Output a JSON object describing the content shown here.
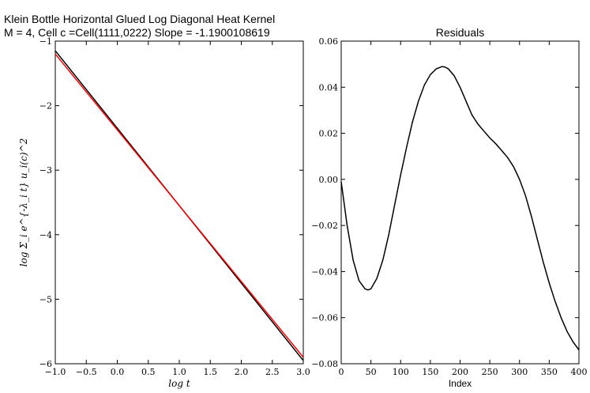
{
  "figure": {
    "title_line1": "Klein Bottle Horizontal Glued Log Diagonal Heat Kernel",
    "title_line2": "M = 4, Cell c =Cell(1111,0222) Slope = -1.1900108619"
  },
  "chart_data": [
    {
      "type": "line",
      "title": "",
      "xlabel": "log t",
      "ylabel": "log Σ_i e^{-λ_i t} u_i(c)^2",
      "xlim": [
        -1.0,
        3.0
      ],
      "ylim": [
        -6,
        -1
      ],
      "xticks": [
        "−1.0",
        "−0.5",
        "0.0",
        "0.5",
        "1.0",
        "1.5",
        "2.0",
        "2.5",
        "3.0"
      ],
      "yticks": [
        "−6",
        "−5",
        "−4",
        "−3",
        "−2",
        "−1"
      ],
      "grid": false,
      "series": [
        {
          "color": "#000000",
          "x": [
            -1.0,
            3.0
          ],
          "y": [
            -1.15,
            -5.95
          ]
        },
        {
          "color": "#ff0000",
          "x": [
            -1.0,
            3.0
          ],
          "y": [
            -1.2,
            -5.9
          ]
        }
      ]
    },
    {
      "type": "line",
      "title": "Residuals",
      "xlabel": "Index",
      "ylabel": "",
      "xlim": [
        0,
        400
      ],
      "ylim": [
        -0.08,
        0.06
      ],
      "xticks": [
        "0",
        "50",
        "100",
        "150",
        "200",
        "250",
        "300",
        "350",
        "400"
      ],
      "yticks": [
        "−0.08",
        "−0.06",
        "−0.04",
        "−0.02",
        "0.00",
        "0.02",
        "0.04",
        "0.06"
      ],
      "grid": false,
      "series": [
        {
          "color": "#000000",
          "x": [
            0,
            10,
            20,
            30,
            40,
            45,
            50,
            60,
            70,
            80,
            90,
            100,
            110,
            120,
            130,
            140,
            150,
            160,
            170,
            175,
            180,
            190,
            200,
            210,
            220,
            230,
            240,
            250,
            260,
            270,
            280,
            290,
            300,
            310,
            320,
            330,
            340,
            350,
            360,
            370,
            380,
            390,
            400
          ],
          "y": [
            -0.001,
            -0.02,
            -0.035,
            -0.044,
            -0.0475,
            -0.048,
            -0.0475,
            -0.043,
            -0.035,
            -0.024,
            -0.011,
            0.002,
            0.014,
            0.025,
            0.034,
            0.041,
            0.0455,
            0.048,
            0.049,
            0.0487,
            0.048,
            0.045,
            0.04,
            0.034,
            0.028,
            0.024,
            0.021,
            0.018,
            0.0155,
            0.0125,
            0.0095,
            0.0055,
            0.0,
            -0.007,
            -0.016,
            -0.026,
            -0.036,
            -0.045,
            -0.053,
            -0.06,
            -0.066,
            -0.0705,
            -0.074
          ]
        }
      ]
    }
  ]
}
